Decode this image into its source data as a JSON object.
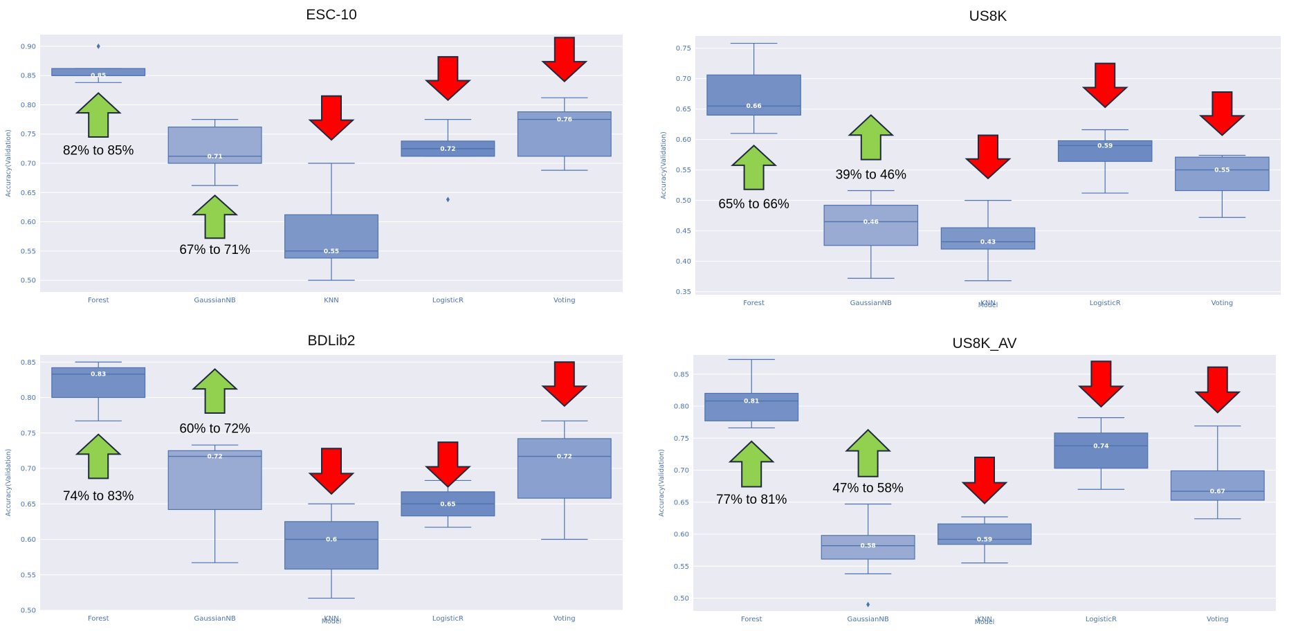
{
  "colors": {
    "plot_bg": "#eaeaf2",
    "grid": "#ffffff",
    "box_edge": "#4c72b0",
    "tick_text": "#4c72b0",
    "up_arrow": "#92d050",
    "down_arrow": "#ff0000",
    "arrow_outline": "#1f2a3d"
  },
  "chart_data": [
    {
      "type": "box",
      "title": "ESC-10",
      "xlabel": "",
      "ylabel": "Accuracy(Validation)",
      "ylim": [
        0.48,
        0.92
      ],
      "yticks": [
        "0.50",
        "0.55",
        "0.60",
        "0.65",
        "0.70",
        "0.75",
        "0.80",
        "0.85",
        "0.90"
      ],
      "categories": [
        "Forest",
        "GaussianNB",
        "KNN",
        "LogisticR",
        "Voting"
      ],
      "boxes": [
        {
          "name": "Forest",
          "whislo": 0.838,
          "q1": 0.85,
          "med": 0.85,
          "q3": 0.862,
          "whishi": 0.862,
          "fliers": [
            0.9
          ],
          "mean_label": "0.85",
          "shade": "#7490c4"
        },
        {
          "name": "GaussianNB",
          "whislo": 0.662,
          "q1": 0.7,
          "med": 0.712,
          "q3": 0.762,
          "whishi": 0.775,
          "fliers": [],
          "mean_label": "0.71",
          "shade": "#9aabd3"
        },
        {
          "name": "KNN",
          "whislo": 0.5,
          "q1": 0.538,
          "med": 0.55,
          "q3": 0.612,
          "whishi": 0.7,
          "fliers": [],
          "mean_label": "0.55",
          "shade": "#7e97c9"
        },
        {
          "name": "LogisticR",
          "whislo": 0.712,
          "q1": 0.712,
          "med": 0.725,
          "q3": 0.738,
          "whishi": 0.775,
          "fliers": [
            0.638
          ],
          "mean_label": "0.72",
          "shade": "#6d8bc2"
        },
        {
          "name": "Voting",
          "whislo": 0.688,
          "q1": 0.712,
          "med": 0.775,
          "q3": 0.788,
          "whishi": 0.812,
          "fliers": [],
          "mean_label": "0.76",
          "shade": "#8aa1cf"
        }
      ],
      "annotations": [
        {
          "text": "82% to 85%",
          "category": "Forest",
          "arrow": "up",
          "arrow_y0": 0.745,
          "arrow_y1": 0.82,
          "text_y": 0.722
        },
        {
          "text": "67% to 71%",
          "category": "GaussianNB",
          "arrow": "up",
          "arrow_y0": 0.572,
          "arrow_y1": 0.645,
          "text_y": 0.552
        },
        {
          "text": "",
          "category": "KNN",
          "arrow": "down",
          "arrow_y0": 0.815,
          "arrow_y1": 0.74
        },
        {
          "text": "",
          "category": "LogisticR",
          "arrow": "down",
          "arrow_y0": 0.882,
          "arrow_y1": 0.808
        },
        {
          "text": "",
          "category": "Voting",
          "arrow": "down",
          "arrow_y0": 0.915,
          "arrow_y1": 0.84
        }
      ]
    },
    {
      "type": "box",
      "title": "US8K",
      "xlabel": "Model",
      "ylabel": "Accuracy(Validation)",
      "ylim": [
        0.345,
        0.77
      ],
      "yticks": [
        "0.35",
        "0.40",
        "0.45",
        "0.50",
        "0.55",
        "0.60",
        "0.65",
        "0.70",
        "0.75"
      ],
      "categories": [
        "Forest",
        "GaussianNB",
        "KNN",
        "LogisticR",
        "Voting"
      ],
      "boxes": [
        {
          "name": "Forest",
          "whislo": 0.61,
          "q1": 0.64,
          "med": 0.655,
          "q3": 0.706,
          "whishi": 0.758,
          "fliers": [],
          "mean_label": "0.66",
          "shade": "#7490c4"
        },
        {
          "name": "GaussianNB",
          "whislo": 0.372,
          "q1": 0.426,
          "med": 0.465,
          "q3": 0.492,
          "whishi": 0.516,
          "fliers": [],
          "mean_label": "0.46",
          "shade": "#9aabd3"
        },
        {
          "name": "KNN",
          "whislo": 0.368,
          "q1": 0.42,
          "med": 0.432,
          "q3": 0.455,
          "whishi": 0.5,
          "fliers": [],
          "mean_label": "0.43",
          "shade": "#7e97c9"
        },
        {
          "name": "LogisticR",
          "whislo": 0.512,
          "q1": 0.564,
          "med": 0.59,
          "q3": 0.598,
          "whishi": 0.616,
          "fliers": [],
          "mean_label": "0.59",
          "shade": "#6d8bc2"
        },
        {
          "name": "Voting",
          "whislo": 0.472,
          "q1": 0.516,
          "med": 0.55,
          "q3": 0.571,
          "whishi": 0.574,
          "fliers": [],
          "mean_label": "0.55",
          "shade": "#8aa1cf"
        }
      ],
      "annotations": [
        {
          "text": "65% to 66%",
          "category": "Forest",
          "arrow": "up",
          "arrow_y0": 0.518,
          "arrow_y1": 0.59,
          "text_y": 0.494
        },
        {
          "text": "39% to 46%",
          "category": "GaussianNB",
          "arrow": "up",
          "arrow_y0": 0.567,
          "arrow_y1": 0.64,
          "text_y": 0.542
        },
        {
          "text": "",
          "category": "KNN",
          "arrow": "down",
          "arrow_y0": 0.607,
          "arrow_y1": 0.536
        },
        {
          "text": "",
          "category": "LogisticR",
          "arrow": "down",
          "arrow_y0": 0.725,
          "arrow_y1": 0.653
        },
        {
          "text": "",
          "category": "Voting",
          "arrow": "down",
          "arrow_y0": 0.678,
          "arrow_y1": 0.607
        }
      ]
    },
    {
      "type": "box",
      "title": "BDLib2",
      "xlabel": "Model",
      "ylabel": "Accuracy(Validation)",
      "ylim": [
        0.5,
        0.86
      ],
      "yticks": [
        "0.50",
        "0.55",
        "0.60",
        "0.65",
        "0.70",
        "0.75",
        "0.80",
        "0.85"
      ],
      "categories": [
        "Forest",
        "GaussianNB",
        "KNN",
        "LogisticR",
        "Voting"
      ],
      "boxes": [
        {
          "name": "Forest",
          "whislo": 0.767,
          "q1": 0.8,
          "med": 0.833,
          "q3": 0.842,
          "whishi": 0.85,
          "fliers": [],
          "mean_label": "0.83",
          "shade": "#7490c4"
        },
        {
          "name": "GaussianNB",
          "whislo": 0.567,
          "q1": 0.642,
          "med": 0.717,
          "q3": 0.725,
          "whishi": 0.733,
          "fliers": [],
          "mean_label": "0.72",
          "shade": "#9aabd3"
        },
        {
          "name": "KNN",
          "whislo": 0.517,
          "q1": 0.558,
          "med": 0.6,
          "q3": 0.625,
          "whishi": 0.65,
          "fliers": [],
          "mean_label": "0.6",
          "shade": "#7e97c9"
        },
        {
          "name": "LogisticR",
          "whislo": 0.617,
          "q1": 0.633,
          "med": 0.65,
          "q3": 0.667,
          "whishi": 0.683,
          "fliers": [],
          "mean_label": "0.65",
          "shade": "#6d8bc2"
        },
        {
          "name": "Voting",
          "whislo": 0.6,
          "q1": 0.658,
          "med": 0.717,
          "q3": 0.742,
          "whishi": 0.767,
          "fliers": [],
          "mean_label": "0.72",
          "shade": "#8aa1cf"
        }
      ],
      "annotations": [
        {
          "text": "74% to 83%",
          "category": "Forest",
          "arrow": "up",
          "arrow_y0": 0.686,
          "arrow_y1": 0.748,
          "text_y": 0.661
        },
        {
          "text": "60% to 72%",
          "category": "GaussianNB",
          "arrow": "up",
          "arrow_y0": 0.778,
          "arrow_y1": 0.84,
          "text_y": 0.756
        },
        {
          "text": "",
          "category": "KNN",
          "arrow": "down",
          "arrow_y0": 0.728,
          "arrow_y1": 0.664
        },
        {
          "text": "",
          "category": "LogisticR",
          "arrow": "down",
          "arrow_y0": 0.737,
          "arrow_y1": 0.674
        },
        {
          "text": "",
          "category": "Voting",
          "arrow": "down",
          "arrow_y0": 0.85,
          "arrow_y1": 0.788
        }
      ]
    },
    {
      "type": "box",
      "title": "US8K_AV",
      "xlabel": "Model",
      "ylabel": "Accuracy(Validation)",
      "ylim": [
        0.48,
        0.88
      ],
      "yticks": [
        "0.50",
        "0.55",
        "0.60",
        "0.65",
        "0.70",
        "0.75",
        "0.80",
        "0.85"
      ],
      "categories": [
        "Forest",
        "GaussianNB",
        "KNN",
        "LogisticR",
        "Voting"
      ],
      "boxes": [
        {
          "name": "Forest",
          "whislo": 0.766,
          "q1": 0.777,
          "med": 0.808,
          "q3": 0.82,
          "whishi": 0.873,
          "fliers": [],
          "mean_label": "0.81",
          "shade": "#7490c4"
        },
        {
          "name": "GaussianNB",
          "whislo": 0.538,
          "q1": 0.561,
          "med": 0.582,
          "q3": 0.598,
          "whishi": 0.647,
          "fliers": [
            0.49
          ],
          "mean_label": "0.58",
          "shade": "#9aabd3"
        },
        {
          "name": "KNN",
          "whislo": 0.555,
          "q1": 0.584,
          "med": 0.592,
          "q3": 0.616,
          "whishi": 0.627,
          "fliers": [],
          "mean_label": "0.59",
          "shade": "#7e97c9"
        },
        {
          "name": "LogisticR",
          "whislo": 0.67,
          "q1": 0.703,
          "med": 0.738,
          "q3": 0.758,
          "whishi": 0.782,
          "fliers": [],
          "mean_label": "0.74",
          "shade": "#6d8bc2"
        },
        {
          "name": "Voting",
          "whislo": 0.624,
          "q1": 0.653,
          "med": 0.667,
          "q3": 0.699,
          "whishi": 0.769,
          "fliers": [],
          "mean_label": "0.67",
          "shade": "#8aa1cf"
        }
      ],
      "annotations": [
        {
          "text": "77% to 81%",
          "category": "Forest",
          "arrow": "up",
          "arrow_y0": 0.674,
          "arrow_y1": 0.745,
          "text_y": 0.654
        },
        {
          "text": "47% to 58%",
          "category": "GaussianNB",
          "arrow": "up",
          "arrow_y0": 0.69,
          "arrow_y1": 0.763,
          "text_y": 0.672
        },
        {
          "text": "",
          "category": "KNN",
          "arrow": "down",
          "arrow_y0": 0.72,
          "arrow_y1": 0.648
        },
        {
          "text": "",
          "category": "LogisticR",
          "arrow": "down",
          "arrow_y0": 0.87,
          "arrow_y1": 0.799
        },
        {
          "text": "",
          "category": "Voting",
          "arrow": "down",
          "arrow_y0": 0.861,
          "arrow_y1": 0.79
        }
      ]
    }
  ]
}
